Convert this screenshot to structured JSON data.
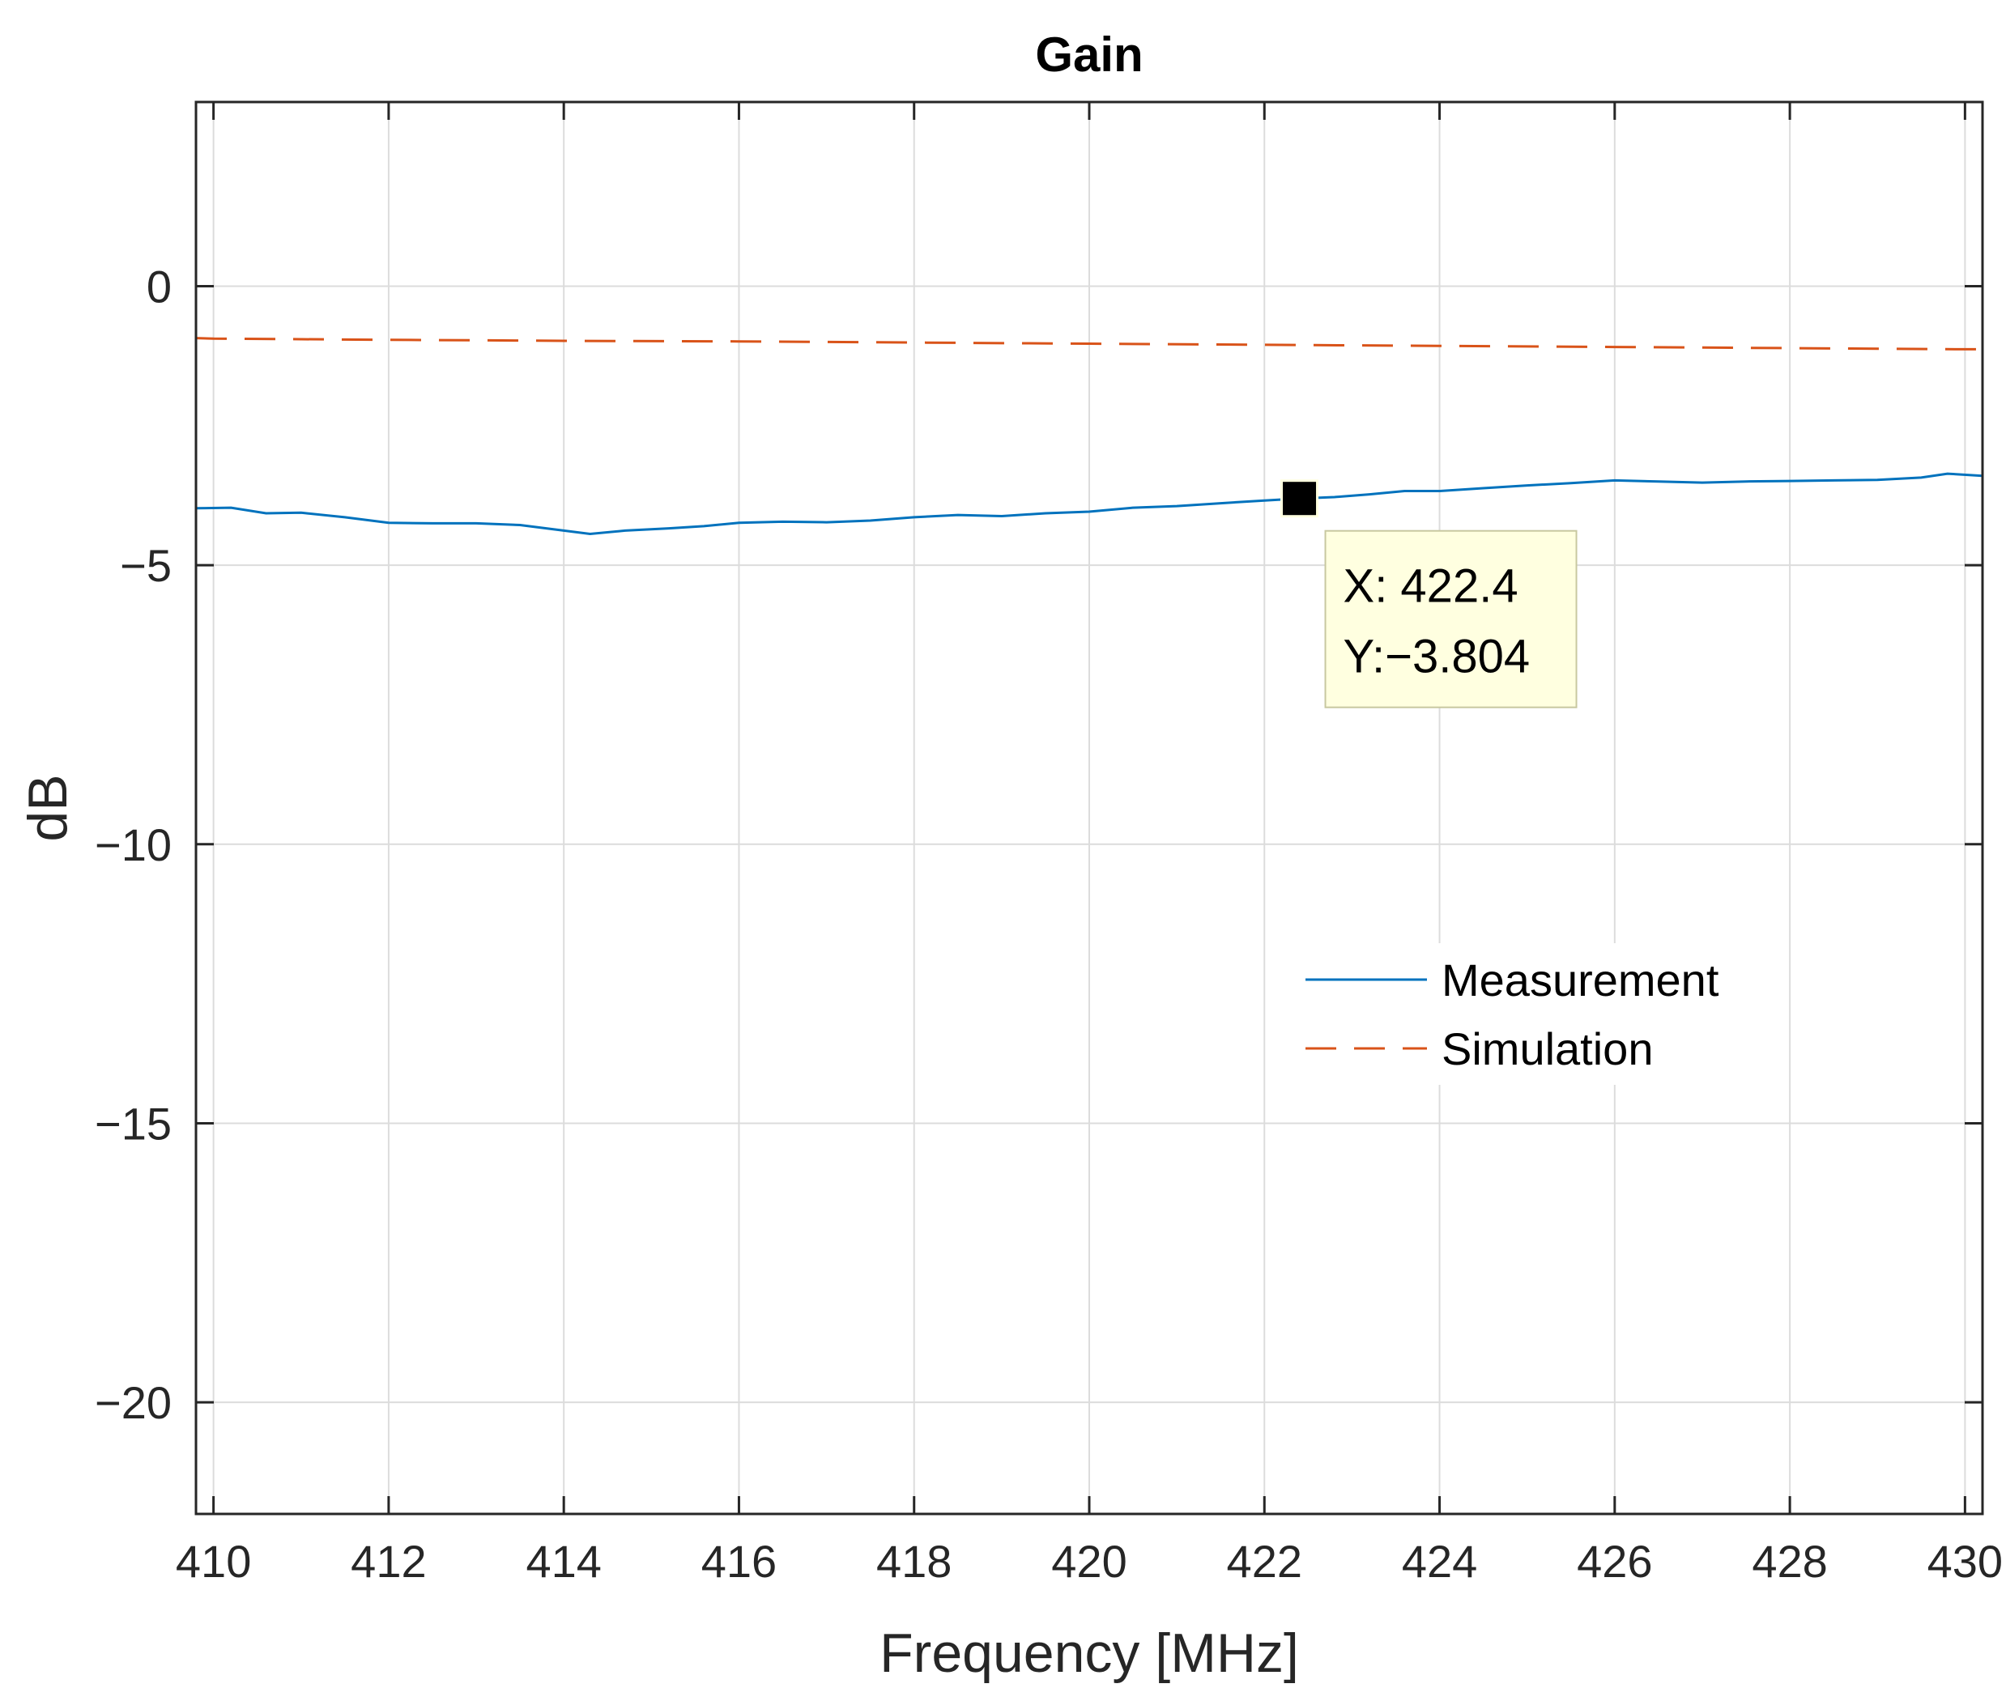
{
  "chart_data": {
    "type": "line",
    "title": "Gain",
    "xlabel": "Frequency [MHz]",
    "ylabel": "dB",
    "xlim": [
      409.8,
      430.2
    ],
    "ylim": [
      -22,
      3.3
    ],
    "xticks": [
      410,
      412,
      414,
      416,
      418,
      420,
      422,
      424,
      426,
      428,
      430
    ],
    "xtick_labels": [
      "410",
      "412",
      "414",
      "416",
      "418",
      "420",
      "422",
      "424",
      "426",
      "428",
      "430"
    ],
    "yticks": [
      0,
      -5,
      -10,
      -15,
      -20
    ],
    "ytick_labels": [
      "0",
      "−5",
      "−10",
      "−15",
      "−20"
    ],
    "grid": true,
    "legend_position": "center-right",
    "series": [
      {
        "name": "Measurement",
        "color": "#0072BD",
        "style": "solid",
        "x": [
          409.8,
          410.2,
          410.6,
          411.0,
          411.5,
          412.0,
          412.5,
          413.0,
          413.5,
          414.0,
          414.3,
          414.7,
          415.2,
          415.6,
          416.0,
          416.5,
          417.0,
          417.5,
          418.0,
          418.5,
          419.0,
          419.5,
          420.0,
          420.5,
          421.0,
          421.5,
          422.0,
          422.4,
          422.8,
          423.2,
          423.6,
          424.0,
          424.5,
          425.0,
          425.5,
          426.0,
          426.5,
          427.0,
          427.5,
          428.0,
          428.5,
          429.0,
          429.5,
          429.8,
          430.2
        ],
        "y": [
          -3.98,
          -3.97,
          -4.07,
          -4.06,
          -4.14,
          -4.24,
          -4.25,
          -4.25,
          -4.28,
          -4.38,
          -4.44,
          -4.38,
          -4.34,
          -4.3,
          -4.24,
          -4.22,
          -4.23,
          -4.2,
          -4.14,
          -4.1,
          -4.12,
          -4.07,
          -4.04,
          -3.97,
          -3.94,
          -3.89,
          -3.84,
          -3.804,
          -3.78,
          -3.73,
          -3.67,
          -3.67,
          -3.62,
          -3.57,
          -3.53,
          -3.48,
          -3.5,
          -3.52,
          -3.5,
          -3.49,
          -3.48,
          -3.47,
          -3.43,
          -3.36,
          -3.4
        ]
      },
      {
        "name": "Simulation",
        "color": "#D95319",
        "style": "dashed",
        "x": [
          409.8,
          410.0,
          412.0,
          414.0,
          416.0,
          418.0,
          420.0,
          422.0,
          424.0,
          426.0,
          428.0,
          430.0,
          430.2
        ],
        "y": [
          -0.93,
          -0.94,
          -0.96,
          -0.98,
          -0.99,
          -1.01,
          -1.03,
          -1.05,
          -1.07,
          -1.09,
          -1.11,
          -1.13,
          -1.13
        ]
      }
    ],
    "datatip": {
      "x": 422.4,
      "y": -3.804,
      "x_label": "X: 422.4",
      "y_label": "Y:−3.804"
    },
    "colors": {
      "axis": "#262626",
      "grid": "#dcdcdc",
      "tip_background": "#ffffe0",
      "tip_border": "#c8c8a0"
    }
  }
}
